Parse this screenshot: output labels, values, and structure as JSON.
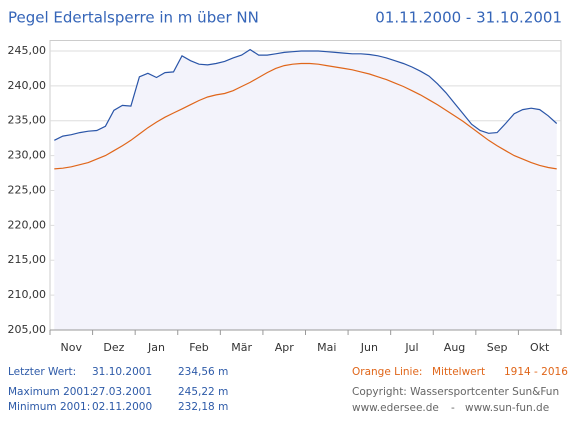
{
  "chart_data": {
    "type": "line",
    "title": "Pegel Edertalsperre in m über NN",
    "subtitle": "01.11.2000 - 31.10.2001",
    "categories": [
      null,
      null,
      "Nov",
      null,
      null,
      null,
      null,
      "Dez",
      null,
      null,
      null,
      null,
      "Jan",
      null,
      null,
      null,
      null,
      "Feb",
      null,
      null,
      null,
      null,
      "Mär",
      null,
      null,
      null,
      null,
      "Apr",
      null,
      null,
      null,
      null,
      "Mai",
      null,
      null,
      null,
      null,
      "Jun",
      null,
      null,
      null,
      null,
      "Jul",
      null,
      null,
      null,
      null,
      "Aug",
      null,
      null,
      null,
      null,
      "Sep",
      null,
      null,
      null,
      null,
      "Okt",
      null,
      null
    ],
    "series": [
      {
        "color": "#2a55a8",
        "fill": "#f3f3fb",
        "values": [
          232.2,
          232.8,
          233.0,
          233.3,
          233.5,
          233.6,
          234.2,
          236.5,
          237.2,
          237.1,
          241.3,
          241.8,
          241.2,
          241.9,
          242.0,
          244.3,
          243.6,
          243.1,
          243.0,
          243.2,
          243.5,
          244.0,
          244.4,
          245.2,
          244.4,
          244.4,
          244.6,
          244.8,
          244.9,
          245.0,
          245.0,
          245.0,
          244.9,
          244.8,
          244.7,
          244.6,
          244.6,
          244.5,
          244.3,
          244.0,
          243.6,
          243.2,
          242.7,
          242.1,
          241.4,
          240.3,
          239.0,
          237.5,
          236.0,
          234.5,
          233.6,
          233.2,
          233.3,
          234.6,
          236.0,
          236.6,
          236.8,
          236.6,
          235.7,
          234.6
        ]
      },
      {
        "color": "#e0661a",
        "values": [
          228.1,
          228.2,
          228.4,
          228.7,
          229.0,
          229.5,
          230.0,
          230.7,
          231.4,
          232.2,
          233.1,
          234.0,
          234.8,
          235.5,
          236.1,
          236.7,
          237.3,
          237.9,
          238.4,
          238.7,
          238.9,
          239.3,
          239.9,
          240.5,
          241.2,
          241.9,
          242.5,
          242.9,
          243.1,
          243.2,
          243.2,
          243.1,
          242.9,
          242.7,
          242.5,
          242.3,
          242.0,
          241.7,
          241.3,
          240.9,
          240.4,
          239.9,
          239.3,
          238.7,
          238.0,
          237.3,
          236.5,
          235.7,
          234.9,
          234.0,
          233.1,
          232.2,
          231.4,
          230.7,
          230.0,
          229.5,
          229.0,
          228.6,
          228.3,
          228.1
        ]
      }
    ],
    "ylim": [
      205,
      246.5
    ],
    "yticks": [
      {
        "value": 205,
        "label": "205,00"
      },
      {
        "value": 210,
        "label": "210,00"
      },
      {
        "value": 215,
        "label": "215,00"
      },
      {
        "value": 220,
        "label": "220,00"
      },
      {
        "value": 225,
        "label": "225,00"
      },
      {
        "value": 230,
        "label": "230,00"
      },
      {
        "value": 235,
        "label": "235,00"
      },
      {
        "value": 240,
        "label": "240,00"
      },
      {
        "value": 245,
        "label": "245,00"
      }
    ],
    "grid": true
  },
  "footer": {
    "rows": [
      [
        "Letzter Wert:",
        "31.10.2001",
        "234,56 m"
      ],
      [
        "Maximum 2001:",
        "27.03.2001",
        "245,22 m"
      ],
      [
        "Minimum  2001:",
        "02.11.2000",
        "232,18 m"
      ]
    ],
    "legend": [
      "Orange Linie:",
      "Mittelwert",
      "1914 - 2016"
    ],
    "copyright": "Copyright: Wassersportcenter Sun&Fun",
    "links": [
      "www.edersee.de",
      "-",
      "www.sun-fun.de"
    ]
  }
}
